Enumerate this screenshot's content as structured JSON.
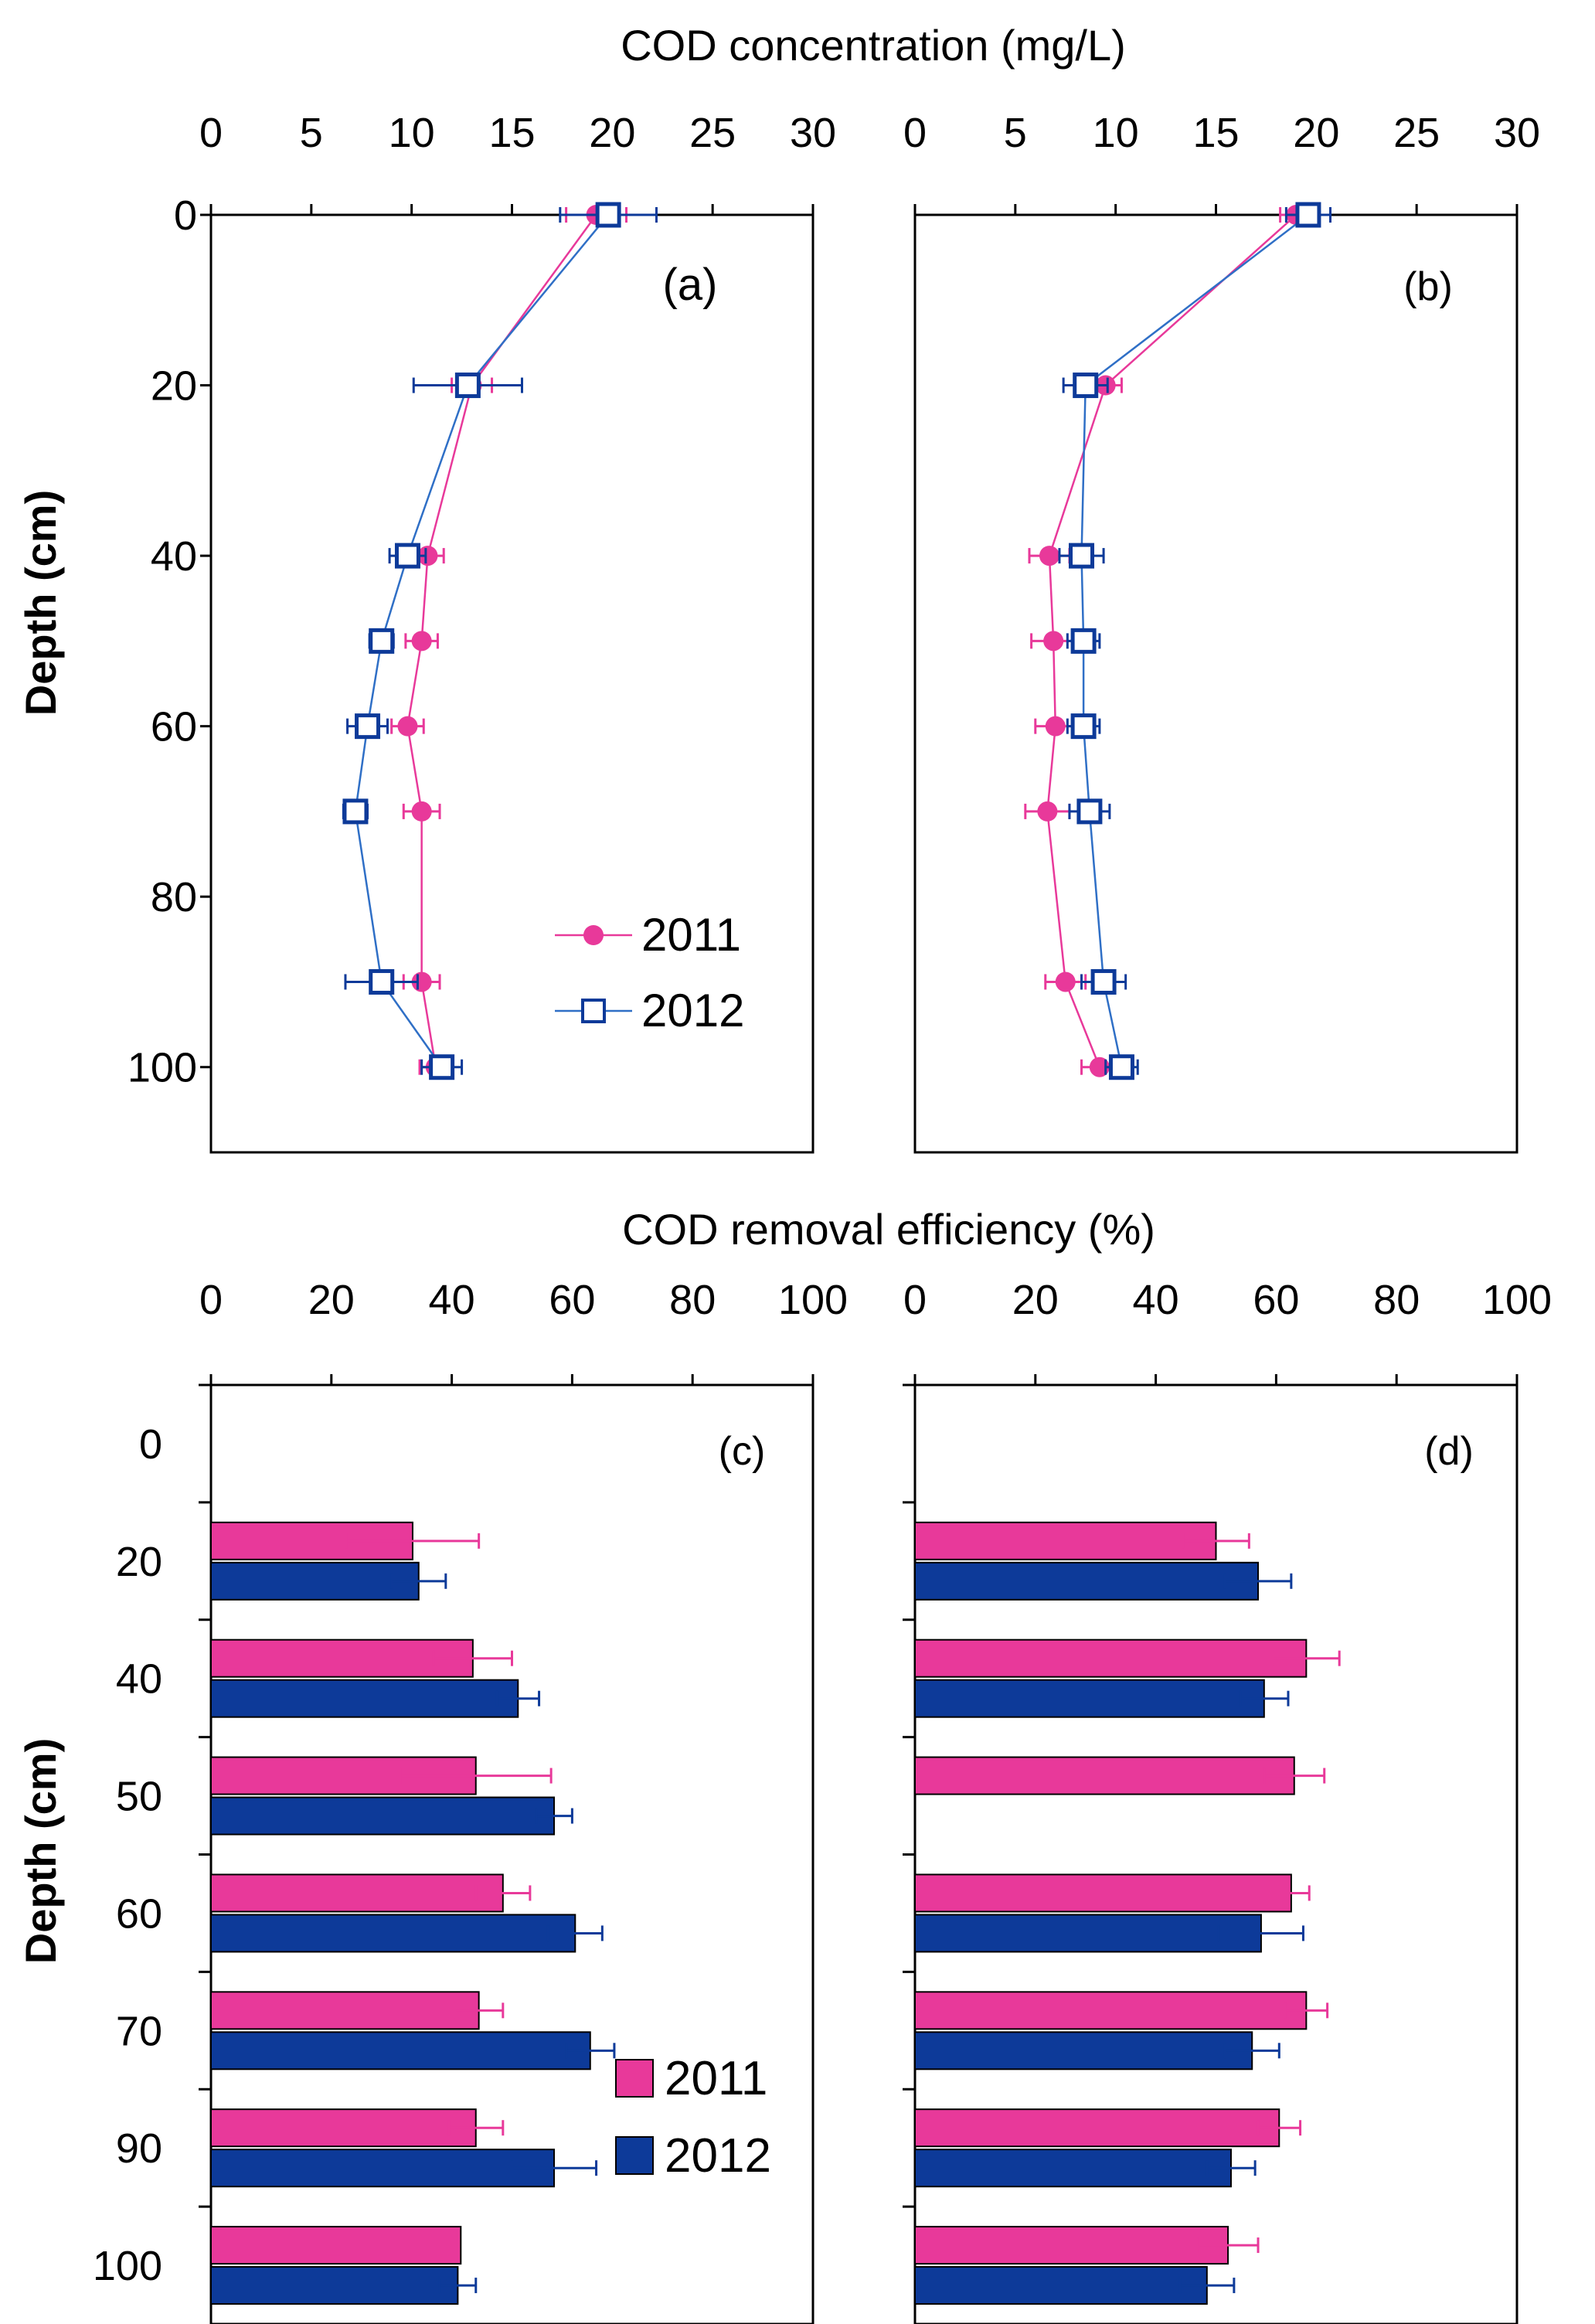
{
  "colors": {
    "c2011": "#E8399A",
    "c2012": "#0D3A99",
    "c2012_line": "#2F6FC6",
    "axis": "#000000"
  },
  "headers": {
    "top": "COD concentration (mg/L)",
    "bottom": "COD removal efficiency (%)"
  },
  "chart_data": [
    {
      "id": "a",
      "type": "line",
      "panel_label": "(a)",
      "xlabel": "COD concentration (mg/L)",
      "ylabel": "Depth (cm)",
      "xlim": [
        0,
        30
      ],
      "ylim": [
        0,
        110
      ],
      "x_ticks": [
        "0",
        "5",
        "10",
        "15",
        "20",
        "25",
        "30"
      ],
      "y_ticks": [
        "0",
        "20",
        "40",
        "60",
        "80",
        "100"
      ],
      "legend": [
        "2011",
        "2012"
      ],
      "series": [
        {
          "name": "2011",
          "marker": "filled-circle",
          "depth": [
            0,
            20,
            40,
            50,
            60,
            70,
            90,
            100
          ],
          "values": [
            19.2,
            13.0,
            10.8,
            10.5,
            9.8,
            10.5,
            10.5,
            11.2
          ],
          "errors": [
            1.5,
            1.0,
            0.8,
            0.8,
            0.8,
            0.9,
            0.9,
            0.8
          ]
        },
        {
          "name": "2012",
          "marker": "open-square",
          "depth": [
            0,
            20,
            40,
            50,
            60,
            70,
            90,
            100
          ],
          "values": [
            19.8,
            12.8,
            9.8,
            8.5,
            7.8,
            7.2,
            8.5,
            11.5
          ],
          "errors": [
            2.4,
            2.7,
            0.9,
            0.6,
            1.0,
            0.6,
            1.8,
            1.0
          ]
        }
      ]
    },
    {
      "id": "b",
      "type": "line",
      "panel_label": "(b)",
      "xlabel": "COD concentration (mg/L)",
      "ylabel": "",
      "xlim": [
        0,
        30
      ],
      "ylim": [
        0,
        110
      ],
      "x_ticks": [
        "0",
        "5",
        "10",
        "15",
        "20",
        "25",
        "30"
      ],
      "y_ticks": [],
      "series": [
        {
          "name": "2011",
          "marker": "filled-circle",
          "depth": [
            0,
            20,
            40,
            50,
            60,
            70,
            90,
            100
          ],
          "values": [
            19.0,
            9.5,
            6.7,
            6.9,
            7.0,
            6.6,
            7.5,
            9.2
          ],
          "errors": [
            0.8,
            0.8,
            1.0,
            1.1,
            1.0,
            1.1,
            1.0,
            0.9
          ]
        },
        {
          "name": "2012",
          "marker": "open-square",
          "depth": [
            0,
            20,
            40,
            50,
            60,
            70,
            90,
            100
          ],
          "values": [
            19.6,
            8.5,
            8.3,
            8.4,
            8.4,
            8.7,
            9.4,
            10.3
          ],
          "errors": [
            1.1,
            1.1,
            1.1,
            0.8,
            0.8,
            1.0,
            1.1,
            0.8
          ]
        }
      ]
    },
    {
      "id": "c",
      "type": "bar",
      "orientation": "horizontal",
      "panel_label": "(c)",
      "xlabel": "COD removal efficiency (%)",
      "ylabel": "Depth (cm)",
      "xlim": [
        0,
        100
      ],
      "x_ticks": [
        "0",
        "20",
        "40",
        "60",
        "80",
        "100"
      ],
      "categories": [
        "0",
        "20",
        "40",
        "50",
        "60",
        "70",
        "90",
        "100"
      ],
      "legend": [
        "2011",
        "2012"
      ],
      "series": [
        {
          "name": "2011",
          "values": [
            null,
            33.5,
            43.5,
            44,
            48.5,
            44.5,
            44,
            41.5
          ],
          "errors": [
            null,
            11,
            6.5,
            12.5,
            4.5,
            4,
            4.5,
            null
          ]
        },
        {
          "name": "2012",
          "values": [
            null,
            34.5,
            51,
            57,
            60.5,
            63,
            57,
            41
          ],
          "errors": [
            null,
            4.5,
            3.5,
            3,
            4.5,
            4,
            7,
            3
          ]
        }
      ]
    },
    {
      "id": "d",
      "type": "bar",
      "orientation": "horizontal",
      "panel_label": "(d)",
      "xlabel": "COD removal efficiency (%)",
      "ylabel": "",
      "xlim": [
        0,
        100
      ],
      "x_ticks": [
        "0",
        "20",
        "40",
        "60",
        "80",
        "100"
      ],
      "categories": [
        "0",
        "20",
        "40",
        "50",
        "60",
        "70",
        "90",
        "100"
      ],
      "series": [
        {
          "name": "2011",
          "values": [
            null,
            50,
            65,
            63,
            62.5,
            65,
            60.5,
            52
          ],
          "errors": [
            null,
            5.5,
            5.5,
            5,
            3,
            3.5,
            3.5,
            5
          ]
        },
        {
          "name": "2012",
          "values": [
            null,
            57,
            58,
            null,
            57.5,
            56,
            52.5,
            48.5
          ],
          "errors": [
            null,
            5.5,
            4,
            null,
            7,
            4.5,
            4,
            4.5
          ]
        }
      ]
    }
  ]
}
